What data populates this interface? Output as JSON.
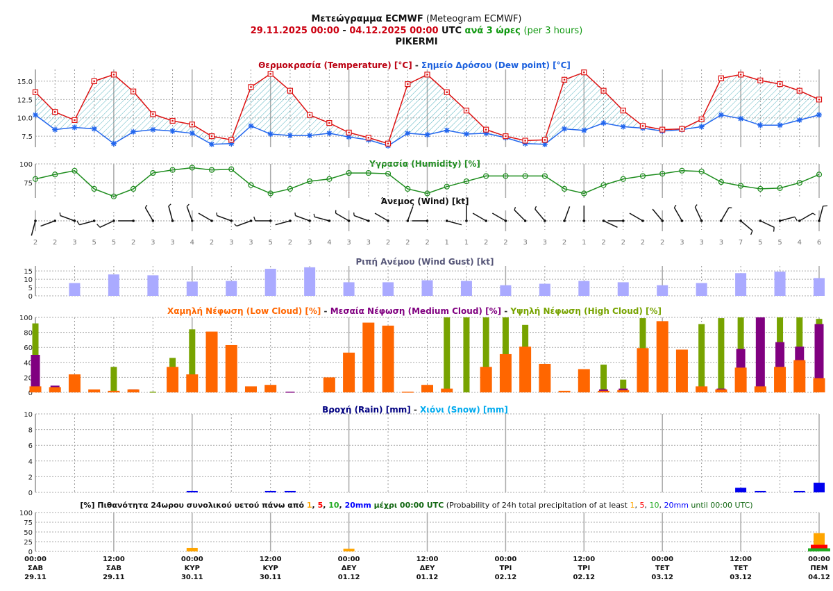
{
  "header": {
    "title": "Μετεώγραμμα ECMWF",
    "title_en": "(Meteogram ECMWF)",
    "range_start": "29.11.2025 00:00",
    "range_sep": "-",
    "range_end": "04.12.2025 00:00",
    "utc": "UTC",
    "step": "ανά 3 ώρες",
    "step_en": "(per 3 hours)",
    "location": "PIKERMI"
  },
  "titles": {
    "temperature": "Θερμοκρασία (Temperature) [°C]",
    "sep": " - ",
    "dewpoint": "Σημείο Δρόσου (Dew point) [°C]",
    "humidity": "Υγρασία (Humidity) [%]",
    "wind": "Άνεμος (Wind) [kt]",
    "gust": "Ριπή Ανέμου (Wind Gust) [kt]",
    "low_cloud": "Χαμηλή Νέφωση (Low Cloud) [%]",
    "medium_cloud": "Μεσαία Νέφωση (Medium Cloud) [%]",
    "high_cloud": "Υψηλή Νέφωση (High Cloud) [%]",
    "rain": "Βροχή (Rain) [mm]",
    "snow": "Χιόνι (Snow) [mm]",
    "prob_a": "[%] Πιθανότητα 24ωρου συνολικού υετού πάνω από ",
    "prob_t1": "1",
    "prob_t5": "5",
    "prob_t10": "10",
    "prob_t20": "20mm",
    "comma": ", ",
    "prob_b": " μέχρι 00:00 UTC",
    "prob_c": " (Probability of 24h total precipitation of at least ",
    "prob_d": " until 00:00 UTC)"
  },
  "colors": {
    "temperature": "#dd1111",
    "dewpoint": "#2266ee",
    "humidity": "#1c8c1c",
    "gust": "#aaaaff",
    "low_cloud": "#ff6600",
    "medium_cloud": "#800080",
    "high_cloud": "#77a300",
    "rain": "#0000ee",
    "snow": "#00aaee",
    "p1": "#ffa500",
    "p5": "#ff0000",
    "p10": "#22aa22",
    "p20": "#0000ff",
    "hatch": "#2aa0b0"
  },
  "x_axis": {
    "ticks": [
      {
        "time": "00:00",
        "day": "ΣΑΒ",
        "date": "29.11"
      },
      {
        "time": "12:00",
        "day": "ΣΑΒ",
        "date": "29.11"
      },
      {
        "time": "00:00",
        "day": "ΚΥΡ",
        "date": "30.11"
      },
      {
        "time": "12:00",
        "day": "ΚΥΡ",
        "date": "30.11"
      },
      {
        "time": "00:00",
        "day": "ΔΕΥ",
        "date": "01.12"
      },
      {
        "time": "12:00",
        "day": "ΔΕΥ",
        "date": "01.12"
      },
      {
        "time": "00:00",
        "day": "ΤΡΙ",
        "date": "02.12"
      },
      {
        "time": "12:00",
        "day": "ΤΡΙ",
        "date": "02.12"
      },
      {
        "time": "00:00",
        "day": "ΤΕΤ",
        "date": "03.12"
      },
      {
        "time": "12:00",
        "day": "ΤΕΤ",
        "date": "03.12"
      },
      {
        "time": "00:00",
        "day": "ΠΕΜ",
        "date": "04.12"
      }
    ]
  },
  "chart_data": [
    {
      "id": "temperature",
      "type": "line",
      "x": [
        "29.11 00",
        "29.11 03",
        "29.11 06",
        "29.11 09",
        "29.11 12",
        "29.11 15",
        "29.11 18",
        "29.11 21",
        "30.11 00",
        "30.11 03",
        "30.11 06",
        "30.11 09",
        "30.11 12",
        "30.11 15",
        "30.11 18",
        "30.11 21",
        "01.12 00",
        "01.12 03",
        "01.12 06",
        "01.12 09",
        "01.12 12",
        "01.12 15",
        "01.12 18",
        "01.12 21",
        "02.12 00",
        "02.12 03",
        "02.12 06",
        "02.12 09",
        "02.12 12",
        "02.12 15",
        "02.12 18",
        "02.12 21",
        "03.12 00",
        "03.12 03",
        "03.12 06",
        "03.12 09",
        "03.12 12",
        "03.12 15",
        "03.12 18",
        "03.12 21",
        "04.12 00"
      ],
      "ylim": [
        6,
        16.6
      ],
      "yticks": [
        "7.5",
        "10.0",
        "12.5",
        "15.0"
      ],
      "series": [
        {
          "name": "Θερμοκρασία (Temperature) [°C]",
          "values": [
            13.5,
            10.8,
            9.7,
            15.0,
            15.9,
            13.6,
            10.5,
            9.6,
            9.1,
            7.5,
            7.0,
            14.2,
            16.0,
            13.7,
            10.4,
            9.3,
            8.0,
            7.3,
            6.5,
            14.6,
            15.9,
            13.5,
            11.0,
            8.4,
            7.5,
            6.9,
            7.0,
            15.2,
            16.2,
            13.7,
            11.0,
            8.9,
            8.4,
            8.5,
            9.8,
            15.4,
            15.9,
            15.1,
            14.6,
            13.7,
            12.5
          ]
        },
        {
          "name": "Σημείο Δρόσου (Dew point) [°C]",
          "values": [
            10.4,
            8.4,
            8.7,
            8.5,
            6.5,
            8.1,
            8.4,
            8.2,
            7.9,
            6.4,
            6.5,
            8.9,
            7.8,
            7.6,
            7.6,
            7.9,
            7.4,
            7.0,
            6.2,
            7.9,
            7.7,
            8.3,
            7.8,
            7.9,
            7.3,
            6.5,
            6.4,
            8.5,
            8.3,
            9.3,
            8.8,
            8.6,
            8.2,
            8.4,
            8.8,
            10.4,
            9.9,
            9.0,
            9.0,
            9.7,
            10.4
          ]
        }
      ]
    },
    {
      "id": "humidity",
      "type": "line",
      "ylim": [
        55,
        100
      ],
      "yticks": [
        "75",
        "100"
      ],
      "series": [
        {
          "name": "Υγρασία (Humidity) [%]",
          "values": [
            80,
            86,
            91,
            67,
            57,
            67,
            88,
            92,
            95,
            92,
            93,
            72,
            61,
            67,
            77,
            80,
            88,
            88,
            87,
            67,
            61,
            70,
            77,
            84,
            84,
            84,
            84,
            67,
            61,
            72,
            80,
            84,
            87,
            91,
            90,
            76,
            71,
            67,
            68,
            75,
            86
          ]
        }
      ]
    },
    {
      "id": "wind",
      "type": "barbs",
      "speed_kt": [
        2,
        2,
        3,
        5,
        5,
        2,
        3,
        3,
        4,
        2,
        3,
        3,
        5,
        2,
        3,
        4,
        3,
        3,
        2,
        2,
        2,
        1,
        1,
        2,
        2,
        3,
        3,
        2,
        1,
        2,
        2,
        2,
        2,
        3,
        3,
        3,
        7,
        5,
        5,
        4,
        6
      ],
      "direction_deg": [
        195,
        250,
        290,
        255,
        245,
        270,
        330,
        345,
        340,
        300,
        290,
        250,
        270,
        255,
        290,
        285,
        300,
        290,
        300,
        20,
        270,
        105,
        0,
        300,
        300,
        315,
        320,
        20,
        0,
        115,
        270,
        300,
        320,
        330,
        335,
        30,
        130,
        115,
        75,
        60,
        15
      ]
    },
    {
      "id": "gust",
      "type": "bar",
      "ylim": [
        0,
        18
      ],
      "yticks": [
        "0",
        "5",
        "10",
        "15"
      ],
      "x_index_every": 2,
      "values": [
        7.7,
        12.9,
        12.4,
        8.6,
        9.0,
        16.3,
        17.2,
        8.2,
        8.2,
        9.4,
        9.0,
        6.4,
        7.3,
        9.0,
        8.2,
        6.4,
        7.7,
        13.7,
        14.6,
        10.7
      ]
    },
    {
      "id": "cloud",
      "type": "bar",
      "ylim": [
        0,
        100
      ],
      "yticks": [
        "0",
        "20",
        "40",
        "60",
        "80",
        "100"
      ],
      "series": [
        {
          "name": "Υψηλή Νέφωση (High Cloud) [%]",
          "values": [
            92,
            0,
            0,
            0,
            34,
            0,
            1,
            46,
            84,
            0,
            0,
            0,
            0,
            0,
            0,
            0,
            0,
            0,
            0,
            0,
            0,
            100,
            100,
            100,
            100,
            90,
            0,
            0,
            0,
            37,
            17,
            99,
            0,
            0,
            91,
            99,
            100,
            0,
            100,
            100,
            98
          ]
        },
        {
          "name": "Μεσαία Νέφωση (Medium Cloud) [%]",
          "values": [
            50,
            9,
            0,
            0,
            0,
            4,
            0,
            0,
            0,
            0,
            0,
            0,
            0,
            1,
            0,
            0,
            0,
            0,
            0,
            0,
            0,
            0,
            0,
            0,
            0,
            0,
            0,
            0,
            0,
            4,
            5,
            0,
            0,
            0,
            0,
            5,
            58,
            100,
            67,
            61,
            91
          ]
        },
        {
          "name": "Χαμηλή Νέφωση (Low Cloud) [%]",
          "values": [
            8,
            7,
            24,
            4,
            2,
            4,
            0,
            34,
            24,
            81,
            63,
            8,
            10,
            0,
            0,
            20,
            53,
            93,
            89,
            1,
            10,
            5,
            0,
            34,
            51,
            61,
            38,
            2,
            31,
            2,
            3,
            59,
            95,
            57,
            8,
            4,
            33,
            8,
            34,
            43,
            19
          ]
        }
      ]
    },
    {
      "id": "rain",
      "type": "bar",
      "ylim": [
        0,
        10
      ],
      "yticks": [
        "0",
        "2",
        "4",
        "6",
        "8",
        "10"
      ],
      "series": [
        {
          "name": "Βροχή (Rain) [mm]",
          "values": [
            0,
            0,
            0,
            0,
            0,
            0,
            0,
            0,
            0.05,
            0,
            0,
            0,
            0.05,
            0.05,
            0,
            0,
            0,
            0,
            0,
            0,
            0,
            0,
            0,
            0,
            0,
            0,
            0,
            0,
            0,
            0,
            0,
            0,
            0,
            0,
            0,
            0,
            0.45,
            0.05,
            0,
            0.05,
            1.1
          ]
        },
        {
          "name": "Χιόνι (Snow) [mm]",
          "values": []
        }
      ]
    },
    {
      "id": "precip_probability",
      "type": "bar",
      "ylim": [
        0,
        100
      ],
      "yticks": [
        "0",
        "25",
        "50",
        "75",
        "100"
      ],
      "categories": [
        "30.11 00:00",
        "01.12 00:00",
        "02.12 00:00",
        "03.12 00:00",
        "04.12 00:00"
      ],
      "series": [
        {
          "name": "1",
          "values": [
            9,
            7,
            0,
            0,
            47
          ]
        },
        {
          "name": "5",
          "values": [
            0,
            0,
            0,
            0,
            17
          ]
        },
        {
          "name": "10",
          "values": [
            0,
            0,
            0,
            0,
            8
          ]
        },
        {
          "name": "20mm",
          "values": [
            0,
            0,
            0,
            0,
            0
          ]
        }
      ]
    }
  ]
}
